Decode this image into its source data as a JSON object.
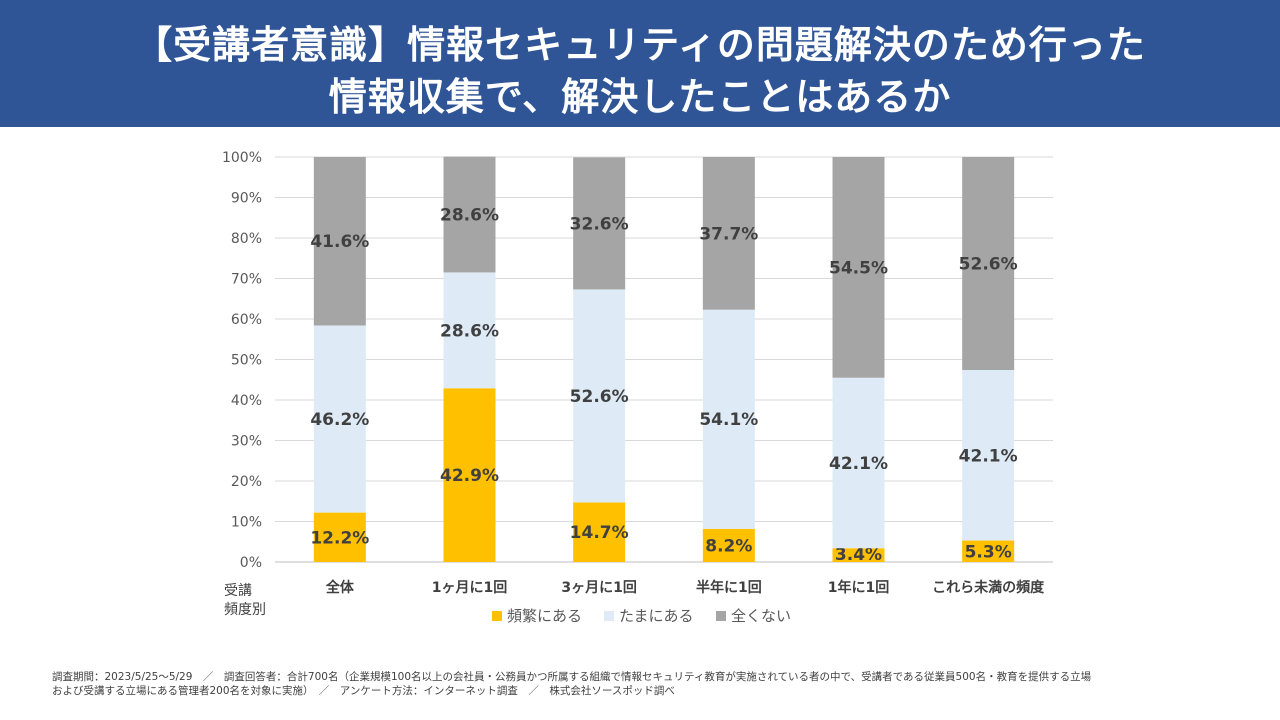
{
  "header": {
    "line1": "【受講者意識】情報セキュリティの問題解決のため行った",
    "line2": "情報収集で、解決したことはあるか"
  },
  "chart_data": {
    "type": "bar",
    "stacked": true,
    "categories": [
      "全体",
      "1ヶ月に1回",
      "3ヶ月に1回",
      "半年に1回",
      "1年に1回",
      "これら未満の頻度"
    ],
    "series": [
      {
        "name": "頻繁にある",
        "color": "#ffc000",
        "values": [
          12.2,
          42.9,
          14.7,
          8.2,
          3.4,
          5.3
        ]
      },
      {
        "name": "たまにある",
        "color": "#deebf7",
        "values": [
          46.2,
          28.6,
          52.6,
          54.1,
          42.1,
          42.1
        ]
      },
      {
        "name": "全くない",
        "color": "#a5a5a5",
        "values": [
          41.6,
          28.6,
          32.6,
          37.7,
          54.5,
          52.6
        ]
      }
    ],
    "ylim": [
      0,
      100
    ],
    "yticks": [
      "0%",
      "10%",
      "20%",
      "30%",
      "40%",
      "50%",
      "60%",
      "70%",
      "80%",
      "90%",
      "100%"
    ],
    "xlabel": "受講頻度別",
    "xlabel_lines": [
      "受講",
      "頻度別"
    ],
    "legend_position": "bottom",
    "grid": true
  },
  "footnote": {
    "line1": "調査期間：2023/5/25～5/29　／　調査回答者：合計700名（企業規模100名以上の会社員・公務員かつ所属する組織で情報セキュリティ教育が実施されている者の中で、受講者である従業員500名・教育を提供する立場",
    "line2": "および受講する立場にある管理者200名を対象に実施）　／　アンケート方法：インターネット調査　／　株式会社ソースポッド調べ"
  }
}
